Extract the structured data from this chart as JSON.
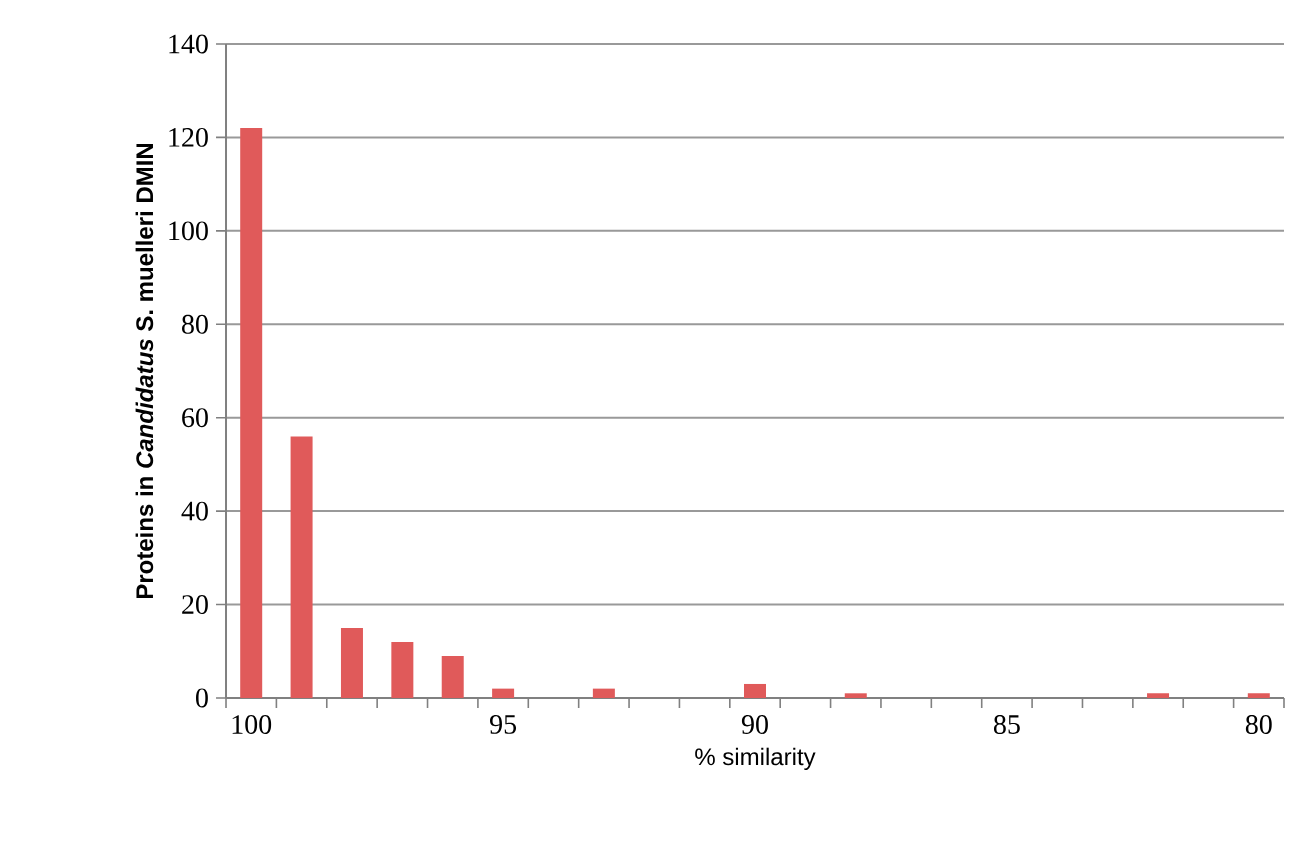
{
  "chart_data": {
    "type": "bar",
    "xlabel": "% similarity",
    "ylabel": "**Proteins in** *Candidatus* **S. muelleri DMIN**",
    "categories": [
      "100",
      null,
      null,
      null,
      null,
      "95",
      null,
      null,
      null,
      null,
      "90",
      null,
      null,
      null,
      null,
      "85",
      null,
      null,
      null,
      null,
      "80"
    ],
    "values": [
      122,
      56,
      15,
      12,
      9,
      2,
      0,
      2,
      0,
      0,
      3,
      0,
      1,
      0,
      0,
      0,
      0,
      0,
      1,
      0,
      1
    ],
    "color": "#e05a5a",
    "ylim": [
      0,
      140
    ],
    "yticks": [
      0,
      20,
      40,
      60,
      80,
      100,
      120,
      140
    ],
    "grid": "y"
  }
}
